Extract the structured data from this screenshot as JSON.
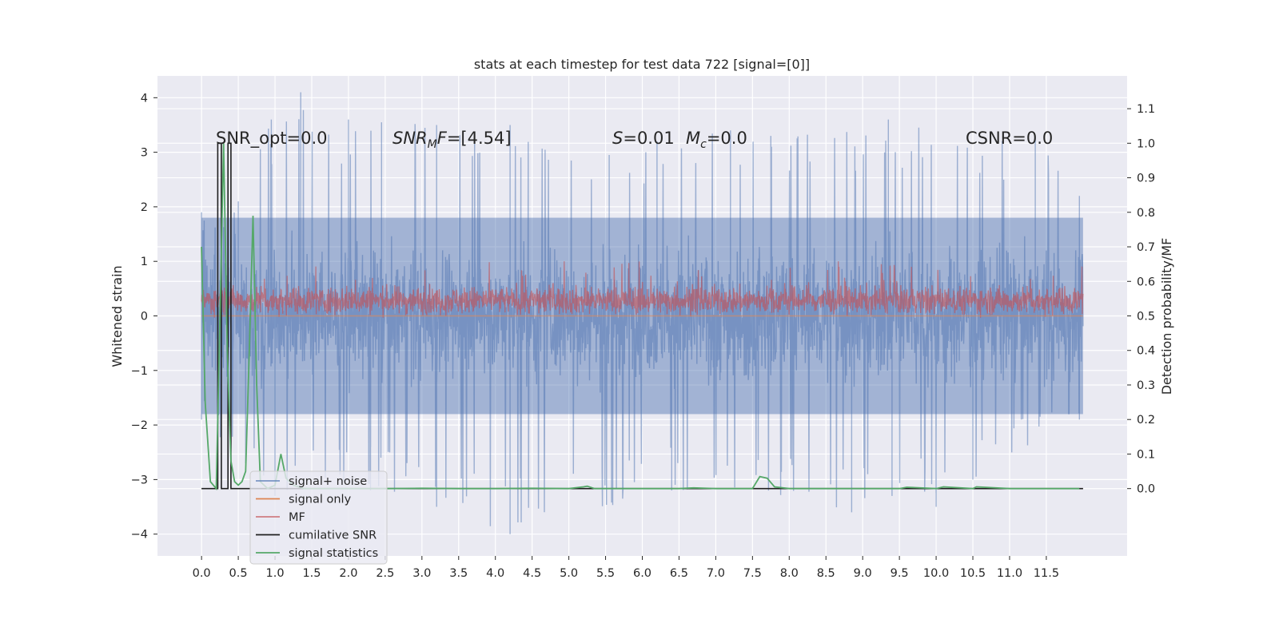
{
  "chart_data": {
    "type": "line",
    "title": "stats at each timestep for test data 722 [signal=[0]]",
    "ylabel": "Whitened strain",
    "y2label": "Detection probability/MF",
    "xlim": [
      -0.6,
      12.6
    ],
    "ylim": [
      -4.4,
      4.4
    ],
    "y2lim": [
      -0.195,
      1.195
    ],
    "grid": true,
    "x_ticks": [
      "0.0",
      "0.5",
      "1.0",
      "1.5",
      "2.0",
      "2.5",
      "3.0",
      "3.5",
      "4.0",
      "4.5",
      "5.0",
      "5.5",
      "6.0",
      "6.5",
      "7.0",
      "7.5",
      "8.0",
      "8.5",
      "9.0",
      "9.5",
      "10.0",
      "10.5",
      "11.0",
      "11.5"
    ],
    "y_ticks": [
      "4",
      "3",
      "2",
      "1",
      "0",
      "−1",
      "−2",
      "−3",
      "−4"
    ],
    "y2_ticks": [
      "1.1",
      "1.0",
      "0.9",
      "0.8",
      "0.7",
      "0.6",
      "0.5",
      "0.4",
      "0.3",
      "0.2",
      "0.1",
      "0.0"
    ],
    "annotations": [
      {
        "id": "snr_opt",
        "text": "SNR_opt=0.0"
      },
      {
        "id": "snr_mf",
        "text": "SNR_MF=[4.54]"
      },
      {
        "id": "s",
        "text": "S=0.01"
      },
      {
        "id": "mc",
        "text": "M_c=0.0"
      },
      {
        "id": "csnr",
        "text": "CSNR=0.0"
      }
    ],
    "legend": {
      "placement": "lower-left",
      "entries": [
        "signal+ noise",
        "signal only",
        "MF",
        "cumilative SNR",
        "signal statistics"
      ]
    },
    "series": [
      {
        "name": "signal+ noise",
        "axis": "left",
        "color": "#4c72b0",
        "x_range": [
          0.0,
          12.0
        ],
        "envelope": {
          "core_band": [
            -1.8,
            1.8
          ],
          "peaks_upper": [
            [
              0.0,
              1.9
            ],
            [
              0.5,
              2.1
            ],
            [
              0.95,
              3.6
            ],
            [
              1.35,
              4.1
            ],
            [
              2.0,
              3.6
            ],
            [
              2.45,
              3.55
            ],
            [
              3.2,
              3.5
            ],
            [
              4.2,
              3.5
            ],
            [
              5.55,
              2.95
            ],
            [
              6.2,
              3.2
            ],
            [
              7.2,
              3.4
            ],
            [
              7.75,
              3.3
            ],
            [
              9.35,
              3.6
            ],
            [
              11.35,
              3.25
            ],
            [
              11.95,
              2.2
            ]
          ],
          "peaks_lower": [
            [
              0.0,
              -1.9
            ],
            [
              0.6,
              -2.7
            ],
            [
              1.0,
              -3.3
            ],
            [
              2.3,
              -3.2
            ],
            [
              3.2,
              -3.5
            ],
            [
              4.2,
              -4.0
            ],
            [
              6.4,
              -3.2
            ],
            [
              8.85,
              -3.6
            ],
            [
              9.4,
              -3.3
            ],
            [
              10.0,
              -3.5
            ],
            [
              10.5,
              -3.0
            ],
            [
              11.95,
              -1.9
            ]
          ]
        }
      },
      {
        "name": "signal only",
        "axis": "left",
        "color": "#dd8452",
        "x": [
          0.0,
          12.0
        ],
        "y": [
          0.0,
          0.0
        ]
      },
      {
        "name": "MF",
        "axis": "right",
        "color": "#c44e52",
        "x_range": [
          0.0,
          12.0
        ],
        "band": [
          0.5,
          0.59
        ],
        "peak_max": 0.66
      },
      {
        "name": "cumilative SNR",
        "axis": "right",
        "color": "#1f1f1f",
        "x": [
          0.0,
          0.2,
          0.2,
          0.22,
          0.22,
          0.27,
          0.27,
          0.36,
          0.36,
          0.4,
          0.4,
          12.0
        ],
        "y": [
          0.0,
          0.0,
          0.0,
          0.0,
          1.0,
          1.0,
          0.0,
          0.0,
          1.0,
          1.0,
          0.0,
          0.0
        ]
      },
      {
        "name": "signal statistics",
        "axis": "right",
        "color": "#55a868",
        "x": [
          0.0,
          0.05,
          0.12,
          0.2,
          0.26,
          0.3,
          0.35,
          0.4,
          0.45,
          0.5,
          0.55,
          0.6,
          0.65,
          0.7,
          0.75,
          0.8,
          0.9,
          1.0,
          1.08,
          1.15,
          1.25,
          1.4,
          1.6,
          2.0,
          2.5,
          3.0,
          3.5,
          4.0,
          4.5,
          5.0,
          5.2,
          5.25,
          5.35,
          5.6,
          6.0,
          6.5,
          6.7,
          7.0,
          7.5,
          7.6,
          7.7,
          7.8,
          8.0,
          8.5,
          9.0,
          9.5,
          9.6,
          10.0,
          10.1,
          10.5,
          10.55,
          11.0,
          11.5,
          11.95
        ],
        "y": [
          0.7,
          0.25,
          0.02,
          0.0,
          0.58,
          1.0,
          0.4,
          0.08,
          0.02,
          0.01,
          0.02,
          0.05,
          0.4,
          0.79,
          0.3,
          0.02,
          0.0,
          0.01,
          0.1,
          0.03,
          0.01,
          0.0,
          0.0,
          0.0,
          0.0,
          0.001,
          0.0,
          0.0,
          0.001,
          0.0,
          0.005,
          0.007,
          0.0,
          0.0,
          0.0,
          0.0,
          0.002,
          0.0,
          0.0,
          0.035,
          0.03,
          0.005,
          0.0,
          0.0,
          0.0,
          0.0,
          0.004,
          0.0,
          0.005,
          0.0,
          0.005,
          0.0,
          0.0,
          0.0
        ]
      }
    ]
  }
}
